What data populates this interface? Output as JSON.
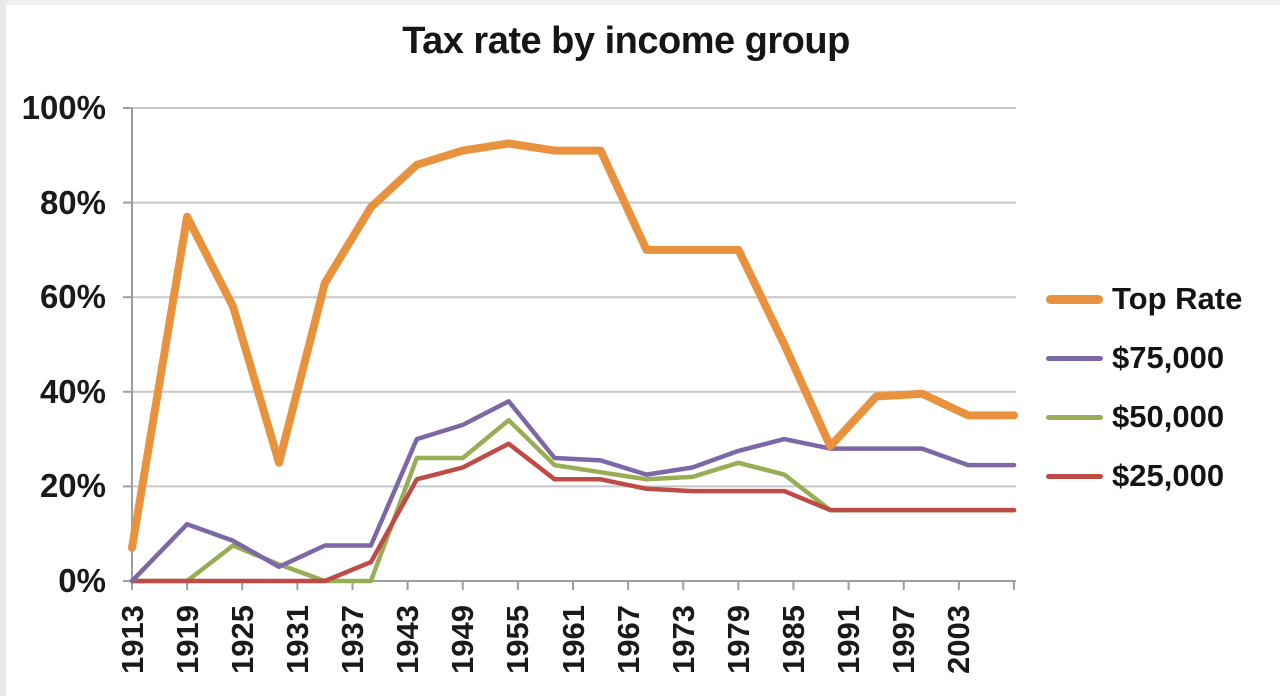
{
  "colors": {
    "background": "#FFFFFF",
    "text": "#1A1A1A",
    "gridline": "#C7C7C7",
    "axis": "#9E9E9E",
    "top_rate": "#E8923E",
    "income_75000": "#7C68A6",
    "income_50000": "#98AE56",
    "income_25000": "#BE4B45"
  },
  "chart_data": {
    "type": "line",
    "title": "Tax rate by income group",
    "xlabel": "",
    "ylabel": "",
    "x_range": [
      1913,
      2009
    ],
    "ylim": [
      0,
      100
    ],
    "grid": true,
    "legend_position": "right",
    "y_ticks": [
      {
        "value": 0,
        "label": "0%"
      },
      {
        "value": 20,
        "label": "20%"
      },
      {
        "value": 40,
        "label": "40%"
      },
      {
        "value": 60,
        "label": "60%"
      },
      {
        "value": 80,
        "label": "80%"
      },
      {
        "value": 100,
        "label": "100%"
      }
    ],
    "x_ticks": [
      {
        "year": 1913,
        "label": "1913"
      },
      {
        "year": 1919,
        "label": "1919"
      },
      {
        "year": 1925,
        "label": "1925"
      },
      {
        "year": 1931,
        "label": "1931"
      },
      {
        "year": 1937,
        "label": "1937"
      },
      {
        "year": 1943,
        "label": "1943"
      },
      {
        "year": 1949,
        "label": "1949"
      },
      {
        "year": 1955,
        "label": "1955"
      },
      {
        "year": 1961,
        "label": "1961"
      },
      {
        "year": 1967,
        "label": "1967"
      },
      {
        "year": 1973,
        "label": "1973"
      },
      {
        "year": 1979,
        "label": "1979"
      },
      {
        "year": 1985,
        "label": "1985"
      },
      {
        "year": 1991,
        "label": "1991"
      },
      {
        "year": 1997,
        "label": "1997"
      },
      {
        "year": 2003,
        "label": "2003"
      },
      {
        "year": 2009,
        "label": ""
      }
    ],
    "years": [
      1913,
      1919,
      1924,
      1929,
      1934,
      1939,
      1944,
      1949,
      1954,
      1959,
      1964,
      1969,
      1974,
      1979,
      1984,
      1989,
      1994,
      1999,
      2004,
      2009
    ],
    "series": [
      {
        "name": "$50,000",
        "color": "#98AE56",
        "width": 4.5,
        "values": [
          0,
          0,
          7.5,
          3.5,
          0,
          0,
          26,
          26,
          34,
          24.5,
          23,
          21.5,
          22,
          25,
          22.5,
          15,
          15,
          15,
          15,
          15
        ]
      },
      {
        "name": "$25,000",
        "color": "#BE4B45",
        "width": 4.5,
        "values": [
          0,
          0,
          0,
          0,
          0,
          4,
          21.5,
          24,
          29,
          21.5,
          21.5,
          19.5,
          19,
          19,
          19,
          15,
          15,
          15,
          15,
          15
        ]
      },
      {
        "name": "$75,000",
        "color": "#7C68A6",
        "width": 4.5,
        "values": [
          0,
          12,
          8.5,
          3,
          7.5,
          7.5,
          30,
          33,
          38,
          26,
          25.5,
          22.5,
          24,
          27.5,
          30,
          28,
          28,
          28,
          24.5,
          24.5
        ]
      },
      {
        "name": "Top Rate",
        "color": "#E8923E",
        "width": 8,
        "values": [
          7,
          77,
          58,
          25,
          63,
          79,
          88,
          91,
          92.5,
          91,
          91,
          70,
          70,
          70,
          50,
          28.5,
          39,
          39.6,
          35,
          35
        ]
      }
    ]
  },
  "legend": {
    "items": [
      {
        "label": "Top Rate",
        "color": "#E8923E",
        "thick": true
      },
      {
        "label": "$75,000",
        "color": "#7C68A6",
        "thick": false
      },
      {
        "label": "$50,000",
        "color": "#98AE56",
        "thick": false
      },
      {
        "label": "$25,000",
        "color": "#BE4B45",
        "thick": false
      }
    ]
  }
}
